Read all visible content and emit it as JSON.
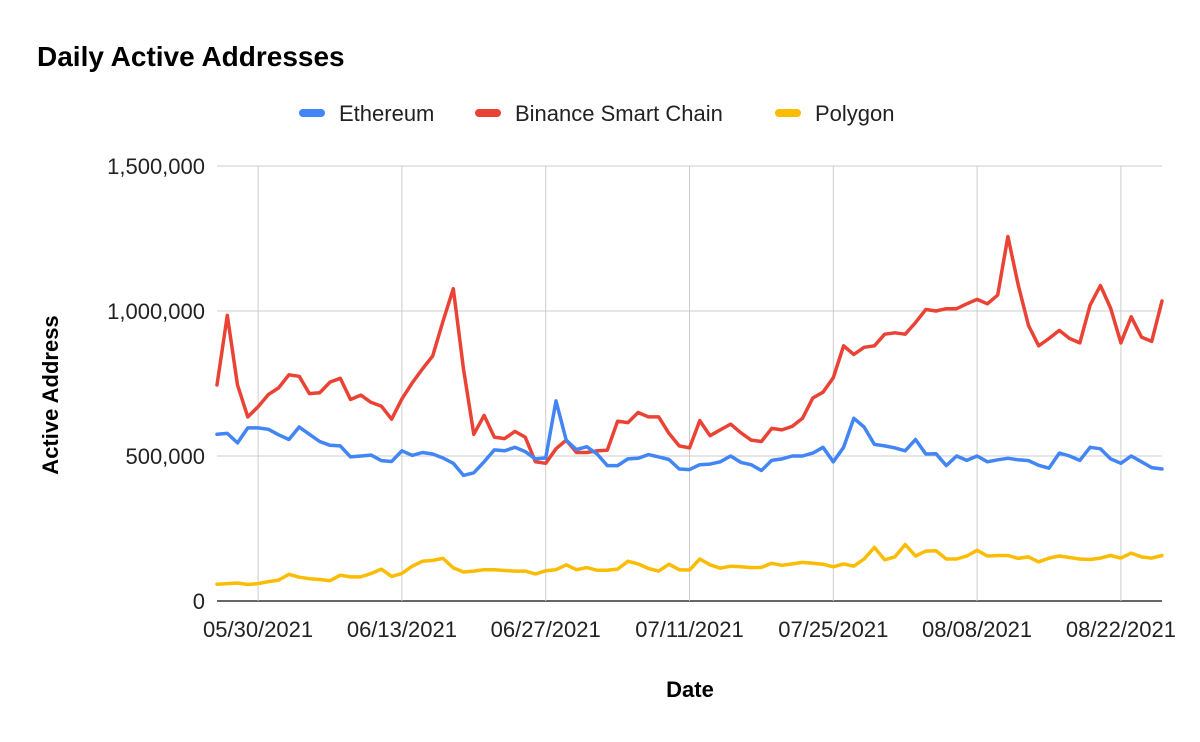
{
  "chart_data": {
    "type": "line",
    "title": "Daily Active Addresses",
    "xlabel": "Date",
    "ylabel": "Active Address",
    "ylim": [
      0,
      1500000
    ],
    "yticks": [
      0,
      500000,
      1000000,
      1500000
    ],
    "ytick_labels": [
      "0",
      "500,000",
      "1,000,000",
      "1,500,000"
    ],
    "x_start": "2021-05-26",
    "x_ticks": [
      "05/30/2021",
      "06/13/2021",
      "06/27/2021",
      "07/11/2021",
      "07/25/2021",
      "08/08/2021",
      "08/22/2021"
    ],
    "grid": true,
    "legend_position": "top",
    "series": [
      {
        "name": "Ethereum",
        "color": "#4285f4",
        "values": [
          575000,
          578000,
          545000,
          597000,
          597000,
          592000,
          573000,
          557000,
          600000,
          575000,
          550000,
          537000,
          535000,
          497000,
          500000,
          503000,
          484000,
          481000,
          518000,
          502000,
          512000,
          507000,
          493000,
          475000,
          433000,
          442000,
          480000,
          521000,
          518000,
          530000,
          515000,
          490000,
          493000,
          690000,
          555000,
          522000,
          532000,
          507000,
          467000,
          467000,
          490000,
          492000,
          505000,
          497000,
          488000,
          455000,
          453000,
          470000,
          472000,
          480000,
          500000,
          478000,
          470000,
          450000,
          485000,
          490000,
          500000,
          500000,
          510000,
          530000,
          480000,
          530000,
          630000,
          600000,
          540000,
          535000,
          528000,
          518000,
          557000,
          507000,
          508000,
          467000,
          500000,
          485000,
          500000,
          480000,
          487000,
          492000,
          487000,
          484000,
          468000,
          458000,
          510000,
          500000,
          485000,
          530000,
          525000,
          490000,
          475000,
          500000,
          480000,
          460000,
          455000
        ]
      },
      {
        "name": "Binance Smart Chain",
        "color": "#ea4335",
        "values": [
          745000,
          985000,
          745000,
          635000,
          670000,
          712000,
          735000,
          780000,
          775000,
          715000,
          718000,
          755000,
          768000,
          695000,
          710000,
          685000,
          672000,
          627000,
          697000,
          752000,
          800000,
          845000,
          965000,
          1077000,
          800000,
          575000,
          640000,
          565000,
          560000,
          585000,
          565000,
          480000,
          475000,
          525000,
          555000,
          512000,
          512000,
          518000,
          520000,
          620000,
          615000,
          650000,
          635000,
          635000,
          578000,
          535000,
          528000,
          622000,
          570000,
          590000,
          610000,
          580000,
          555000,
          550000,
          595000,
          590000,
          602000,
          630000,
          700000,
          720000,
          770000,
          880000,
          850000,
          875000,
          880000,
          920000,
          925000,
          920000,
          960000,
          1005000,
          1000000,
          1008000,
          1008000,
          1025000,
          1040000,
          1025000,
          1055000,
          1257000,
          1090000,
          950000,
          880000,
          905000,
          933000,
          905000,
          890000,
          1020000,
          1088000,
          1010000,
          890000,
          980000,
          910000,
          895000,
          1035000
        ]
      },
      {
        "name": "Polygon",
        "color": "#fbbc04",
        "values": [
          58000,
          60000,
          62000,
          57000,
          60000,
          67000,
          72000,
          92000,
          82000,
          77000,
          74000,
          70000,
          89000,
          83000,
          83000,
          95000,
          110000,
          85000,
          95000,
          120000,
          137000,
          140000,
          147000,
          114000,
          100000,
          103000,
          108000,
          108000,
          105000,
          103000,
          103000,
          93000,
          104000,
          108000,
          125000,
          108000,
          115000,
          106000,
          106000,
          110000,
          137000,
          128000,
          112000,
          103000,
          127000,
          108000,
          107000,
          145000,
          125000,
          113000,
          120000,
          118000,
          115000,
          116000,
          130000,
          123000,
          128000,
          133000,
          130000,
          127000,
          118000,
          128000,
          120000,
          145000,
          185000,
          142000,
          152000,
          195000,
          155000,
          172000,
          173000,
          145000,
          145000,
          155000,
          175000,
          155000,
          157000,
          157000,
          147000,
          152000,
          135000,
          148000,
          155000,
          150000,
          145000,
          143000,
          148000,
          157000,
          148000,
          165000,
          152000,
          148000,
          157000
        ]
      }
    ]
  }
}
